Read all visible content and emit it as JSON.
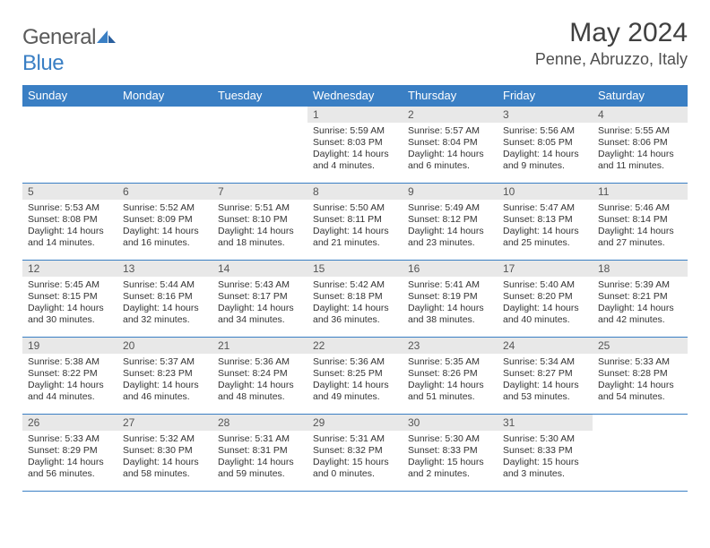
{
  "logo": {
    "text1": "Genera",
    "text2": "l",
    "accent": "Blue"
  },
  "colors": {
    "header_bg": "#3a7fc4",
    "header_fg": "#ffffff",
    "daynum_bg": "#e8e8e8",
    "daynum_fg": "#555555",
    "border": "#3a7fc4",
    "text": "#333333",
    "title": "#404040",
    "logo_gray": "#5a5a5a",
    "logo_blue": "#3a7fc4"
  },
  "title": "May 2024",
  "location": "Penne, Abruzzo, Italy",
  "weekdays": [
    "Sunday",
    "Monday",
    "Tuesday",
    "Wednesday",
    "Thursday",
    "Friday",
    "Saturday"
  ],
  "rows": [
    [
      null,
      null,
      null,
      {
        "n": "1",
        "sr": "5:59 AM",
        "ss": "8:03 PM",
        "dl": "14 hours and 4 minutes."
      },
      {
        "n": "2",
        "sr": "5:57 AM",
        "ss": "8:04 PM",
        "dl": "14 hours and 6 minutes."
      },
      {
        "n": "3",
        "sr": "5:56 AM",
        "ss": "8:05 PM",
        "dl": "14 hours and 9 minutes."
      },
      {
        "n": "4",
        "sr": "5:55 AM",
        "ss": "8:06 PM",
        "dl": "14 hours and 11 minutes."
      }
    ],
    [
      {
        "n": "5",
        "sr": "5:53 AM",
        "ss": "8:08 PM",
        "dl": "14 hours and 14 minutes."
      },
      {
        "n": "6",
        "sr": "5:52 AM",
        "ss": "8:09 PM",
        "dl": "14 hours and 16 minutes."
      },
      {
        "n": "7",
        "sr": "5:51 AM",
        "ss": "8:10 PM",
        "dl": "14 hours and 18 minutes."
      },
      {
        "n": "8",
        "sr": "5:50 AM",
        "ss": "8:11 PM",
        "dl": "14 hours and 21 minutes."
      },
      {
        "n": "9",
        "sr": "5:49 AM",
        "ss": "8:12 PM",
        "dl": "14 hours and 23 minutes."
      },
      {
        "n": "10",
        "sr": "5:47 AM",
        "ss": "8:13 PM",
        "dl": "14 hours and 25 minutes."
      },
      {
        "n": "11",
        "sr": "5:46 AM",
        "ss": "8:14 PM",
        "dl": "14 hours and 27 minutes."
      }
    ],
    [
      {
        "n": "12",
        "sr": "5:45 AM",
        "ss": "8:15 PM",
        "dl": "14 hours and 30 minutes."
      },
      {
        "n": "13",
        "sr": "5:44 AM",
        "ss": "8:16 PM",
        "dl": "14 hours and 32 minutes."
      },
      {
        "n": "14",
        "sr": "5:43 AM",
        "ss": "8:17 PM",
        "dl": "14 hours and 34 minutes."
      },
      {
        "n": "15",
        "sr": "5:42 AM",
        "ss": "8:18 PM",
        "dl": "14 hours and 36 minutes."
      },
      {
        "n": "16",
        "sr": "5:41 AM",
        "ss": "8:19 PM",
        "dl": "14 hours and 38 minutes."
      },
      {
        "n": "17",
        "sr": "5:40 AM",
        "ss": "8:20 PM",
        "dl": "14 hours and 40 minutes."
      },
      {
        "n": "18",
        "sr": "5:39 AM",
        "ss": "8:21 PM",
        "dl": "14 hours and 42 minutes."
      }
    ],
    [
      {
        "n": "19",
        "sr": "5:38 AM",
        "ss": "8:22 PM",
        "dl": "14 hours and 44 minutes."
      },
      {
        "n": "20",
        "sr": "5:37 AM",
        "ss": "8:23 PM",
        "dl": "14 hours and 46 minutes."
      },
      {
        "n": "21",
        "sr": "5:36 AM",
        "ss": "8:24 PM",
        "dl": "14 hours and 48 minutes."
      },
      {
        "n": "22",
        "sr": "5:36 AM",
        "ss": "8:25 PM",
        "dl": "14 hours and 49 minutes."
      },
      {
        "n": "23",
        "sr": "5:35 AM",
        "ss": "8:26 PM",
        "dl": "14 hours and 51 minutes."
      },
      {
        "n": "24",
        "sr": "5:34 AM",
        "ss": "8:27 PM",
        "dl": "14 hours and 53 minutes."
      },
      {
        "n": "25",
        "sr": "5:33 AM",
        "ss": "8:28 PM",
        "dl": "14 hours and 54 minutes."
      }
    ],
    [
      {
        "n": "26",
        "sr": "5:33 AM",
        "ss": "8:29 PM",
        "dl": "14 hours and 56 minutes."
      },
      {
        "n": "27",
        "sr": "5:32 AM",
        "ss": "8:30 PM",
        "dl": "14 hours and 58 minutes."
      },
      {
        "n": "28",
        "sr": "5:31 AM",
        "ss": "8:31 PM",
        "dl": "14 hours and 59 minutes."
      },
      {
        "n": "29",
        "sr": "5:31 AM",
        "ss": "8:32 PM",
        "dl": "15 hours and 0 minutes."
      },
      {
        "n": "30",
        "sr": "5:30 AM",
        "ss": "8:33 PM",
        "dl": "15 hours and 2 minutes."
      },
      {
        "n": "31",
        "sr": "5:30 AM",
        "ss": "8:33 PM",
        "dl": "15 hours and 3 minutes."
      },
      null
    ]
  ],
  "labels": {
    "sunrise": "Sunrise: ",
    "sunset": "Sunset: ",
    "daylight": "Daylight: "
  }
}
